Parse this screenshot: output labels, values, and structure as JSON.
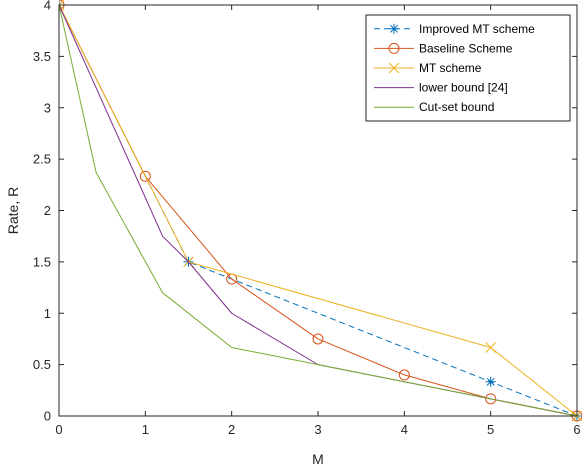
{
  "chart_data": {
    "type": "line",
    "xlabel": "M",
    "ylabel": "Rate, R",
    "xlim": [
      0,
      6
    ],
    "ylim": [
      0,
      4
    ],
    "xticks": [
      "0",
      "1",
      "2",
      "3",
      "4",
      "5",
      "6"
    ],
    "yticks": [
      "0",
      "0.5",
      "1",
      "1.5",
      "2",
      "2.5",
      "3",
      "3.5",
      "4"
    ],
    "grid": false,
    "legend_position": "top-right",
    "series": [
      {
        "name": "Improved MT scheme",
        "color": "#0072BD",
        "line_style": "dashed",
        "marker": "asterisk",
        "x": [
          0,
          1.5,
          5,
          6
        ],
        "y": [
          4,
          1.5,
          0.333,
          0
        ]
      },
      {
        "name": "Baseline Scheme",
        "color": "#D95319",
        "line_style": "solid",
        "marker": "circle",
        "x": [
          0,
          1,
          2,
          3,
          4,
          5,
          6
        ],
        "y": [
          4,
          2.333,
          1.333,
          0.75,
          0.4,
          0.167,
          0
        ]
      },
      {
        "name": "MT scheme",
        "color": "#EDB120",
        "line_style": "solid",
        "marker": "x",
        "x": [
          0,
          1.5,
          5,
          6
        ],
        "y": [
          4,
          1.5,
          0.667,
          0
        ]
      },
      {
        "name": "lower bound [24]",
        "color": "#7E2F8E",
        "line_style": "solid",
        "marker": "none",
        "x": [
          0,
          1.2,
          1.5,
          2,
          3,
          6
        ],
        "y": [
          4,
          1.75,
          1.5,
          1.0,
          0.5,
          0
        ]
      },
      {
        "name": "Cut-set bound",
        "color": "#77AC30",
        "line_style": "solid",
        "marker": "none",
        "x": [
          0,
          0.43,
          1.2,
          2,
          3,
          6
        ],
        "y": [
          4,
          2.37,
          1.2,
          0.667,
          0.5,
          0
        ]
      }
    ]
  }
}
